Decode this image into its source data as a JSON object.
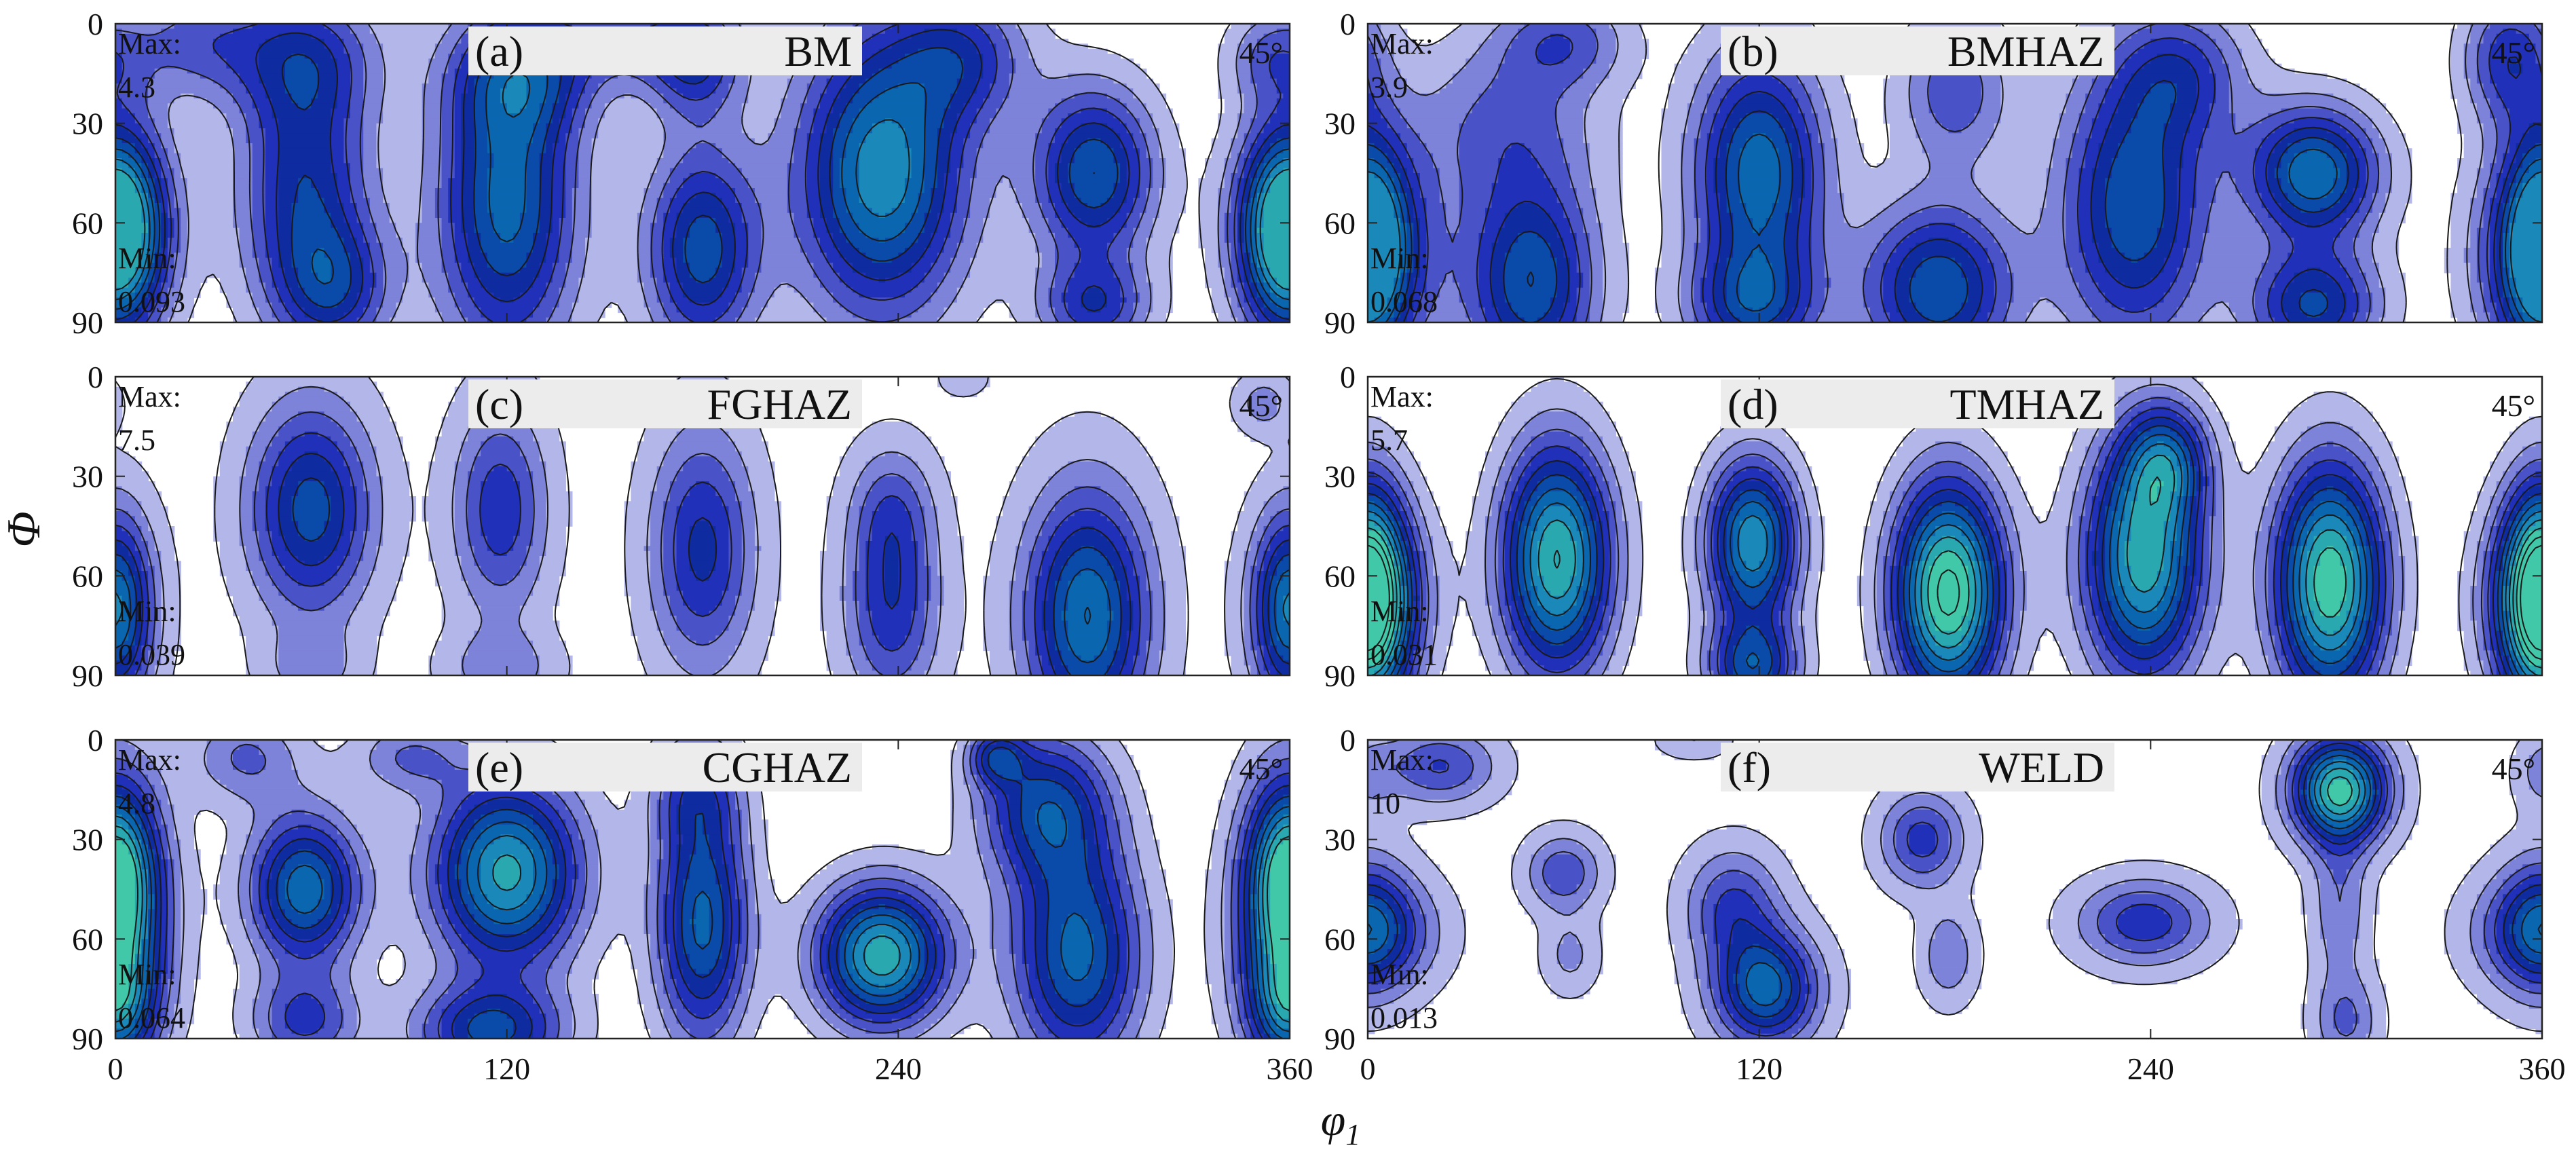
{
  "figure": {
    "xlabel": "φ",
    "xlabel_sub": "1",
    "ylabel": "Φ",
    "x_ticks": [
      "0",
      "120",
      "240",
      "360"
    ],
    "y_ticks": [
      "0",
      "30",
      "60",
      "90"
    ],
    "section_label": "45°"
  },
  "colors": {
    "levels": [
      "#ffffff",
      "#b3b6e8",
      "#7d83d8",
      "#4a52c8",
      "#2030b8",
      "#0f2ba0",
      "#0a4aa8",
      "#0b66b0",
      "#1a88b8",
      "#2aa8b0",
      "#40c8a8",
      "#7cec72",
      "#e8f030",
      "#ff9020",
      "#ff4010"
    ],
    "outline": "#1a1a1a",
    "label_box": "#ececec"
  },
  "chart_data": [
    {
      "type": "heatmap",
      "panel": "(a)",
      "name": "BM",
      "max_label": "Max:",
      "max_value": "4.3",
      "min_label": "Min:",
      "min_value": "0.093",
      "max": 4.3,
      "min": 0.093,
      "xlim": [
        0,
        360
      ],
      "ylim": [
        0,
        90
      ],
      "peaks": [
        {
          "x": 0,
          "y": 62,
          "a": 3.0,
          "sx": 10,
          "sy": 22
        },
        {
          "x": 25,
          "y": 5,
          "a": 1.5,
          "sx": 15,
          "sy": 12
        },
        {
          "x": 58,
          "y": 10,
          "a": 1.8,
          "sx": 16,
          "sy": 14
        },
        {
          "x": 58,
          "y": 50,
          "a": 2.8,
          "sx": 14,
          "sy": 28
        },
        {
          "x": 68,
          "y": 80,
          "a": 2.0,
          "sx": 12,
          "sy": 14
        },
        {
          "x": 120,
          "y": 55,
          "a": 3.6,
          "sx": 15,
          "sy": 32
        },
        {
          "x": 125,
          "y": 15,
          "a": 2.2,
          "sx": 15,
          "sy": 14
        },
        {
          "x": 160,
          "y": 5,
          "a": 1.5,
          "sx": 18,
          "sy": 10
        },
        {
          "x": 180,
          "y": 68,
          "a": 3.2,
          "sx": 12,
          "sy": 22
        },
        {
          "x": 178,
          "y": 12,
          "a": 2.0,
          "sx": 10,
          "sy": 12
        },
        {
          "x": 235,
          "y": 45,
          "a": 4.3,
          "sx": 18,
          "sy": 30
        },
        {
          "x": 260,
          "y": 10,
          "a": 2.0,
          "sx": 14,
          "sy": 14
        },
        {
          "x": 300,
          "y": 45,
          "a": 3.4,
          "sx": 13,
          "sy": 18
        },
        {
          "x": 300,
          "y": 85,
          "a": 2.2,
          "sx": 12,
          "sy": 10
        },
        {
          "x": 360,
          "y": 62,
          "a": 3.2,
          "sx": 12,
          "sy": 22
        },
        {
          "x": 355,
          "y": 10,
          "a": 1.4,
          "sx": 10,
          "sy": 10
        }
      ]
    },
    {
      "type": "heatmap",
      "panel": "(b)",
      "name": "BMHAZ",
      "max_label": "Max:",
      "max_value": "3.9",
      "min_label": "Min:",
      "min_value": "0.068",
      "max": 3.9,
      "min": 0.068,
      "xlim": [
        0,
        360
      ],
      "ylim": [
        0,
        90
      ],
      "peaks": [
        {
          "x": 0,
          "y": 65,
          "a": 2.6,
          "sx": 8,
          "sy": 24
        },
        {
          "x": 50,
          "y": 78,
          "a": 3.4,
          "sx": 14,
          "sy": 22
        },
        {
          "x": 42,
          "y": 30,
          "a": 1.5,
          "sx": 20,
          "sy": 18
        },
        {
          "x": 60,
          "y": 5,
          "a": 1.6,
          "sx": 14,
          "sy": 10
        },
        {
          "x": 120,
          "y": 45,
          "a": 3.8,
          "sx": 14,
          "sy": 26
        },
        {
          "x": 118,
          "y": 85,
          "a": 2.4,
          "sx": 14,
          "sy": 12
        },
        {
          "x": 175,
          "y": 80,
          "a": 3.4,
          "sx": 16,
          "sy": 18
        },
        {
          "x": 180,
          "y": 20,
          "a": 1.8,
          "sx": 12,
          "sy": 16
        },
        {
          "x": 235,
          "y": 55,
          "a": 3.4,
          "sx": 16,
          "sy": 30
        },
        {
          "x": 250,
          "y": 15,
          "a": 1.8,
          "sx": 14,
          "sy": 14
        },
        {
          "x": 290,
          "y": 45,
          "a": 3.9,
          "sx": 14,
          "sy": 14
        },
        {
          "x": 290,
          "y": 85,
          "a": 3.0,
          "sx": 14,
          "sy": 12
        },
        {
          "x": 350,
          "y": 10,
          "a": 2.2,
          "sx": 10,
          "sy": 14
        },
        {
          "x": 360,
          "y": 70,
          "a": 3.4,
          "sx": 14,
          "sy": 24
        }
      ]
    },
    {
      "type": "heatmap",
      "panel": "(c)",
      "name": "FGHAZ",
      "max_label": "Max:",
      "max_value": "7.5",
      "min_label": "Min:",
      "min_value": "0.039",
      "max": 7.5,
      "min": 0.039,
      "xlim": [
        0,
        360
      ],
      "ylim": [
        0,
        90
      ],
      "peaks": [
        {
          "x": 0,
          "y": 70,
          "a": 3.5,
          "sx": 7,
          "sy": 20
        },
        {
          "x": 60,
          "y": 40,
          "a": 6.0,
          "sx": 13,
          "sy": 22
        },
        {
          "x": 60,
          "y": 88,
          "a": 1.8,
          "sx": 10,
          "sy": 8
        },
        {
          "x": 118,
          "y": 40,
          "a": 4.2,
          "sx": 10,
          "sy": 22
        },
        {
          "x": 118,
          "y": 88,
          "a": 2.0,
          "sx": 12,
          "sy": 8
        },
        {
          "x": 180,
          "y": 52,
          "a": 4.8,
          "sx": 11,
          "sy": 25
        },
        {
          "x": 238,
          "y": 70,
          "a": 4.2,
          "sx": 10,
          "sy": 20
        },
        {
          "x": 238,
          "y": 40,
          "a": 2.6,
          "sx": 9,
          "sy": 14
        },
        {
          "x": 298,
          "y": 72,
          "a": 7.5,
          "sx": 13,
          "sy": 26
        },
        {
          "x": 360,
          "y": 70,
          "a": 4.2,
          "sx": 9,
          "sy": 20
        },
        {
          "x": 352,
          "y": 8,
          "a": 2.0,
          "sx": 6,
          "sy": 6
        },
        {
          "x": 260,
          "y": 0,
          "a": 1.4,
          "sx": 5,
          "sy": 4
        }
      ]
    },
    {
      "type": "heatmap",
      "panel": "(d)",
      "name": "TMHAZ",
      "max_label": "Max:",
      "max_value": "5.7",
      "min_label": "Min:",
      "min_value": "0.031",
      "max": 5.7,
      "min": 0.031,
      "xlim": [
        0,
        360
      ],
      "ylim": [
        0,
        90
      ],
      "peaks": [
        {
          "x": 0,
          "y": 65,
          "a": 3.6,
          "sx": 8,
          "sy": 24
        },
        {
          "x": 58,
          "y": 55,
          "a": 5.0,
          "sx": 12,
          "sy": 25
        },
        {
          "x": 118,
          "y": 50,
          "a": 4.4,
          "sx": 10,
          "sy": 18
        },
        {
          "x": 118,
          "y": 88,
          "a": 3.0,
          "sx": 10,
          "sy": 10
        },
        {
          "x": 178,
          "y": 65,
          "a": 5.7,
          "sx": 12,
          "sy": 24
        },
        {
          "x": 238,
          "y": 55,
          "a": 4.8,
          "sx": 13,
          "sy": 26
        },
        {
          "x": 245,
          "y": 25,
          "a": 2.4,
          "sx": 9,
          "sy": 12
        },
        {
          "x": 295,
          "y": 62,
          "a": 5.4,
          "sx": 12,
          "sy": 26
        },
        {
          "x": 360,
          "y": 68,
          "a": 4.0,
          "sx": 12,
          "sy": 22
        }
      ]
    },
    {
      "type": "heatmap",
      "panel": "(e)",
      "name": "CGHAZ",
      "max_label": "Max:",
      "max_value": "4.8",
      "min_label": "Min:",
      "min_value": "0.064",
      "max": 4.8,
      "min": 0.064,
      "xlim": [
        0,
        360
      ],
      "ylim": [
        0,
        90
      ],
      "peaks": [
        {
          "x": 0,
          "y": 40,
          "a": 2.8,
          "sx": 8,
          "sy": 18
        },
        {
          "x": 0,
          "y": 80,
          "a": 2.2,
          "sx": 8,
          "sy": 12
        },
        {
          "x": 58,
          "y": 45,
          "a": 3.8,
          "sx": 12,
          "sy": 16
        },
        {
          "x": 58,
          "y": 85,
          "a": 2.0,
          "sx": 12,
          "sy": 10
        },
        {
          "x": 40,
          "y": 5,
          "a": 1.5,
          "sx": 12,
          "sy": 10
        },
        {
          "x": 120,
          "y": 40,
          "a": 4.6,
          "sx": 16,
          "sy": 20
        },
        {
          "x": 115,
          "y": 88,
          "a": 3.0,
          "sx": 16,
          "sy": 10
        },
        {
          "x": 90,
          "y": 5,
          "a": 1.4,
          "sx": 12,
          "sy": 8
        },
        {
          "x": 180,
          "y": 55,
          "a": 3.6,
          "sx": 10,
          "sy": 26
        },
        {
          "x": 178,
          "y": 15,
          "a": 1.6,
          "sx": 10,
          "sy": 12
        },
        {
          "x": 235,
          "y": 65,
          "a": 4.8,
          "sx": 14,
          "sy": 15
        },
        {
          "x": 285,
          "y": 20,
          "a": 3.0,
          "sx": 14,
          "sy": 16
        },
        {
          "x": 295,
          "y": 65,
          "a": 3.6,
          "sx": 14,
          "sy": 24
        },
        {
          "x": 270,
          "y": 5,
          "a": 2.2,
          "sx": 6,
          "sy": 6
        },
        {
          "x": 360,
          "y": 55,
          "a": 3.8,
          "sx": 12,
          "sy": 30
        }
      ]
    },
    {
      "type": "heatmap",
      "panel": "(f)",
      "name": "WELD",
      "max_label": "Max:",
      "max_value": "10",
      "min_label": "Min:",
      "min_value": "0.013",
      "max": 10,
      "min": 0.013,
      "xlim": [
        0,
        360
      ],
      "ylim": [
        0,
        90
      ],
      "peaks": [
        {
          "x": 22,
          "y": 8,
          "a": 3.6,
          "sx": 12,
          "sy": 8
        },
        {
          "x": 0,
          "y": 55,
          "a": 3.0,
          "sx": 9,
          "sy": 15
        },
        {
          "x": 60,
          "y": 40,
          "a": 3.4,
          "sx": 8,
          "sy": 8
        },
        {
          "x": 62,
          "y": 65,
          "a": 1.8,
          "sx": 6,
          "sy": 8
        },
        {
          "x": 112,
          "y": 50,
          "a": 3.6,
          "sx": 10,
          "sy": 12
        },
        {
          "x": 122,
          "y": 75,
          "a": 7.0,
          "sx": 11,
          "sy": 12
        },
        {
          "x": 100,
          "y": 0,
          "a": 1.5,
          "sx": 8,
          "sy": 4
        },
        {
          "x": 170,
          "y": 30,
          "a": 4.0,
          "sx": 9,
          "sy": 10
        },
        {
          "x": 178,
          "y": 65,
          "a": 2.4,
          "sx": 6,
          "sy": 10
        },
        {
          "x": 238,
          "y": 55,
          "a": 4.2,
          "sx": 14,
          "sy": 9
        },
        {
          "x": 298,
          "y": 15,
          "a": 10.0,
          "sx": 10,
          "sy": 11
        },
        {
          "x": 298,
          "y": 50,
          "a": 2.4,
          "sx": 6,
          "sy": 16
        },
        {
          "x": 300,
          "y": 85,
          "a": 2.6,
          "sx": 7,
          "sy": 10
        },
        {
          "x": 360,
          "y": 58,
          "a": 4.6,
          "sx": 14,
          "sy": 12
        },
        {
          "x": 360,
          "y": 10,
          "a": 1.5,
          "sx": 6,
          "sy": 8
        }
      ]
    }
  ]
}
